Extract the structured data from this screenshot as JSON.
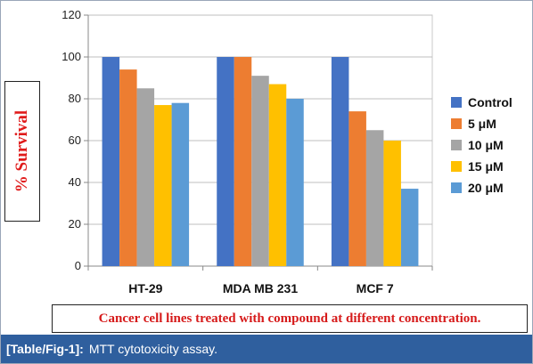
{
  "chart_data": {
    "type": "bar",
    "categories": [
      "HT-29",
      "MDA MB 231",
      "MCF 7"
    ],
    "series": [
      {
        "name": "Control",
        "values": [
          100,
          100,
          100
        ],
        "color": "#4472c4"
      },
      {
        "name": "5 μM",
        "values": [
          94,
          100,
          74
        ],
        "color": "#ed7d31"
      },
      {
        "name": "10 μM",
        "values": [
          85,
          91,
          65
        ],
        "color": "#a5a5a5"
      },
      {
        "name": "15 μM",
        "values": [
          77,
          87,
          60
        ],
        "color": "#ffc000"
      },
      {
        "name": "20 μM",
        "values": [
          78,
          80,
          37
        ],
        "color": "#5b9bd5"
      }
    ],
    "ylabel": "% Survival",
    "xlabel": "Cancer cell lines treated with compound at different concentration.",
    "ylim": [
      0,
      120
    ],
    "yticks": [
      0,
      20,
      40,
      60,
      80,
      100,
      120
    ],
    "grid": "horizontal",
    "legend": "right"
  },
  "caption": {
    "tag": "[Table/Fig-1]:",
    "text": "MTT cytotoxicity assay."
  },
  "colors": {
    "caption_bar": "#2f5f9e",
    "axis_label": "#e01b1b"
  }
}
